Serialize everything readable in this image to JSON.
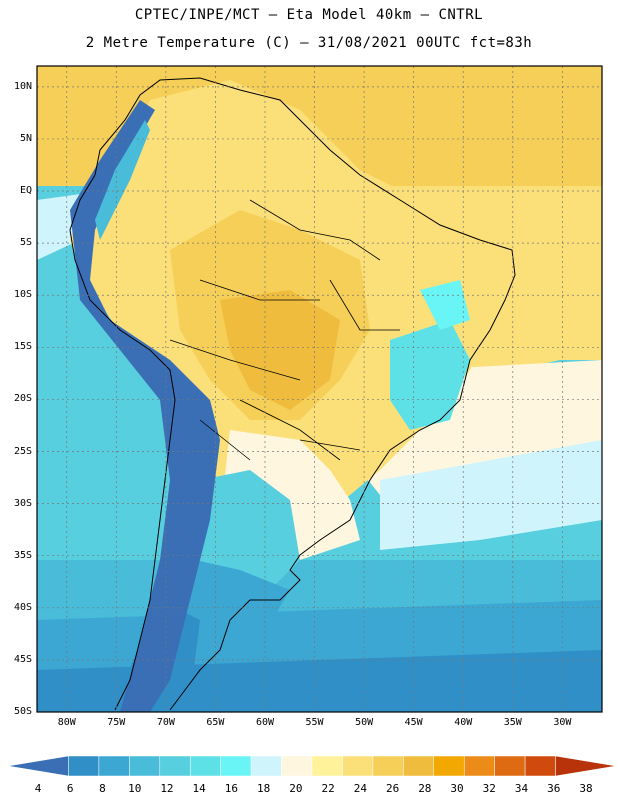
{
  "header": {
    "line1": "CPTEC/INPE/MCT  –  Eta Model 40km  –  CNTRL",
    "line2": "2 Metre Temperature (C) – 31/08/2021 00UTC fct=83h"
  },
  "map": {
    "lat_labels": [
      "10N",
      "5N",
      "EQ",
      "5S",
      "10S",
      "15S",
      "20S",
      "25S",
      "30S",
      "35S",
      "40S",
      "45S",
      "50S"
    ],
    "lon_labels": [
      "80W",
      "75W",
      "70W",
      "65W",
      "60W",
      "55W",
      "50W",
      "45W",
      "40W",
      "35W",
      "30W"
    ],
    "lat_range": [
      -50,
      12
    ],
    "lon_range": [
      -83,
      -26
    ]
  },
  "colorbar": {
    "labels": [
      "4",
      "6",
      "8",
      "10",
      "12",
      "14",
      "16",
      "18",
      "20",
      "22",
      "24",
      "26",
      "28",
      "30",
      "32",
      "34",
      "36",
      "38"
    ],
    "colors": [
      "#3a6fb6",
      "#2f8fc6",
      "#3ba7d2",
      "#48bcd8",
      "#57cfdf",
      "#5ee1e6",
      "#69f5f5",
      "#cff4fb",
      "#fff6df",
      "#fff29a",
      "#fbe07a",
      "#f5cf57",
      "#f0bc3d",
      "#f2a800",
      "#ec8b18",
      "#de6a12",
      "#cf4a0c",
      "#b8320a"
    ]
  }
}
